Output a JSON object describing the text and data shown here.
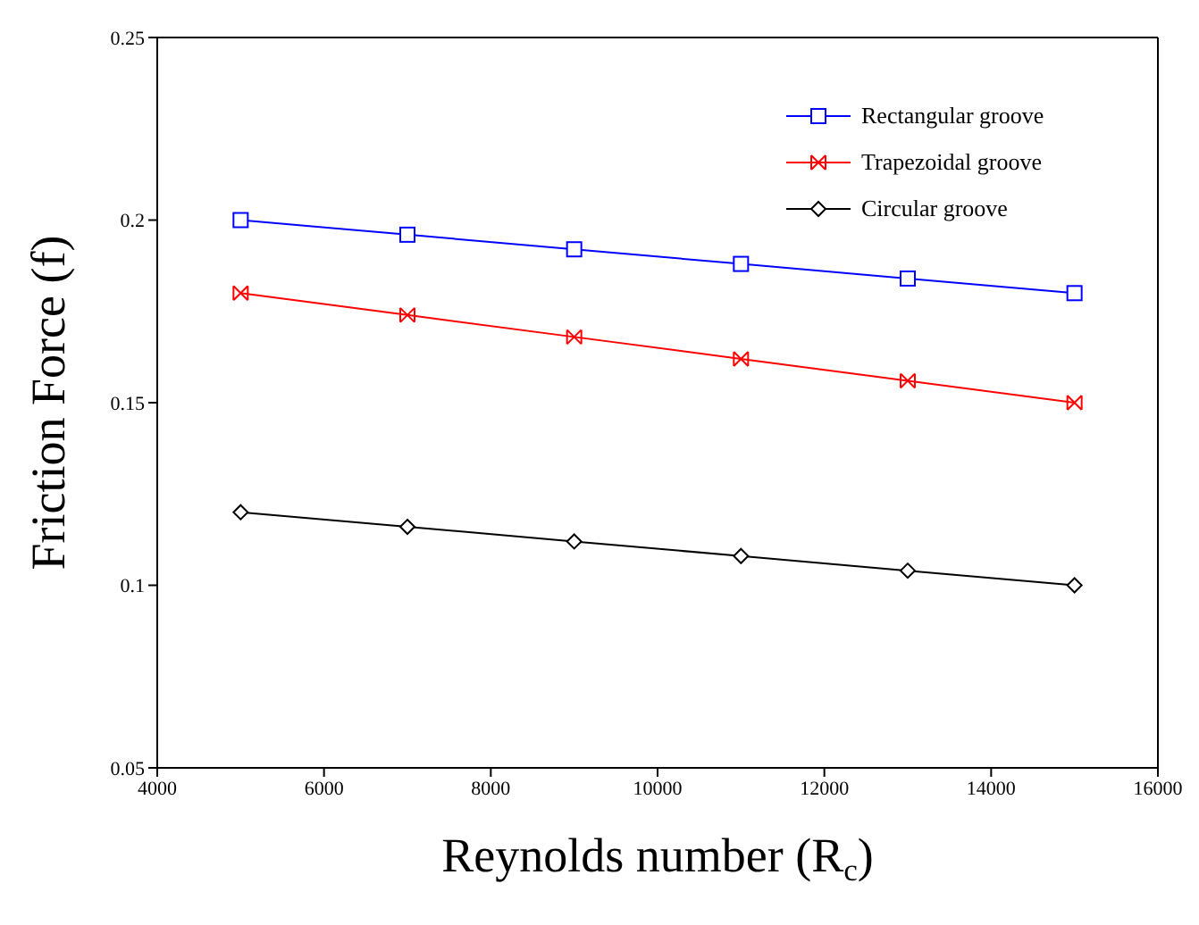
{
  "chart_data": {
    "type": "line",
    "xlabel": "Reynolds number (R$_{c}$)",
    "ylabel": "Friction Force (f)",
    "x": [
      5000,
      7000,
      9000,
      11000,
      13000,
      15000
    ],
    "series": [
      {
        "name": "Rectangular groove",
        "color": "#0000ff",
        "marker": "square",
        "values": [
          0.2,
          0.196,
          0.192,
          0.188,
          0.184,
          0.18
        ]
      },
      {
        "name": "Trapezoidal groove",
        "color": "#ff0000",
        "marker": "cross",
        "values": [
          0.18,
          0.174,
          0.168,
          0.162,
          0.156,
          0.15
        ]
      },
      {
        "name": "Circular groove",
        "color": "#000000",
        "marker": "diamond",
        "values": [
          0.12,
          0.116,
          0.112,
          0.108,
          0.104,
          0.1
        ]
      }
    ],
    "xlim": [
      4000,
      16000
    ],
    "xticks": [
      4000,
      6000,
      8000,
      10000,
      12000,
      14000,
      16000
    ],
    "ylim": [
      0.05,
      0.25
    ],
    "yticks": [
      0.05,
      0.1,
      0.15,
      0.2,
      0.25
    ],
    "grid": false,
    "legend": "top right",
    "line_style": "solid"
  }
}
